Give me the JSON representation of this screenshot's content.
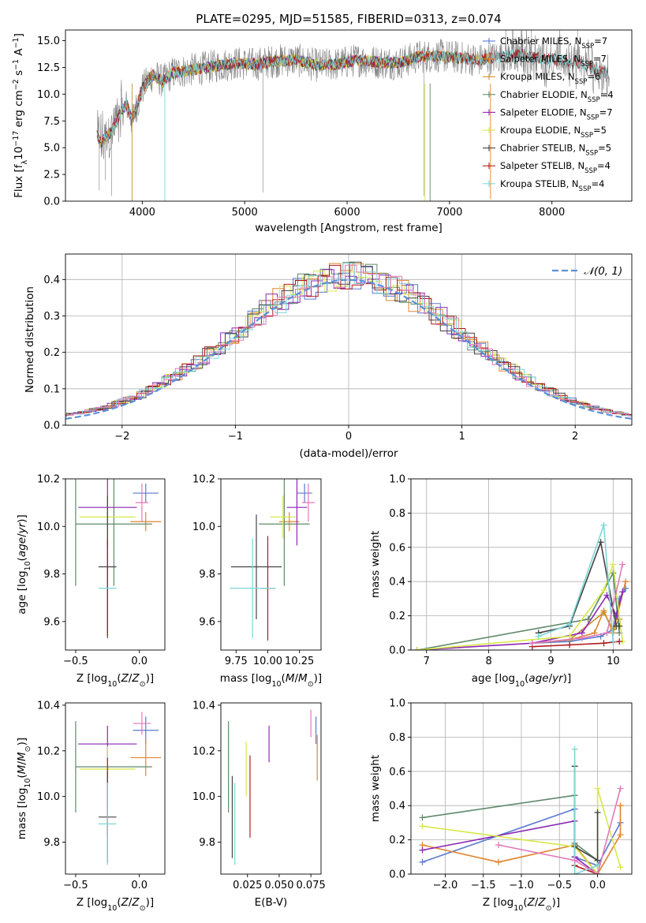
{
  "figure": {
    "title": "PLATE=0295, MJD=51585, FIBERID=0313, z=0.074"
  },
  "colors": {
    "Chabrier MILES": "#5b79d0",
    "Salpeter MILES": "#e0842e",
    "Kroupa MILES": "#c8902a",
    "Chabrier ELODIE": "#5e8a6a",
    "Salpeter ELODIE": "#8d27b3",
    "Kroupa ELODIE": "#d7e84a",
    "Chabrier STELIB": "#444444",
    "Salpeter STELIB": "#b01a1a",
    "Kroupa STELIB": "#7fd6d8",
    "data": "#808080",
    "gaussian": "#5b8fd6",
    "pink": "#e07ab8"
  },
  "chart_data": [
    {
      "id": "spectrum",
      "type": "line",
      "title": "PLATE=0295, MJD=51585, FIBERID=0313, z=0.074",
      "xlabel": "wavelength [Angstrom, rest frame]",
      "ylabel_parts": [
        "Flux [f",
        "λ",
        "10",
        "−17",
        " erg cm",
        "−2",
        " s",
        "−1",
        " A",
        "−1",
        "]"
      ],
      "xlim": [
        3250,
        8780
      ],
      "ylim": [
        0,
        16
      ],
      "xticks": [
        4000,
        5000,
        6000,
        7000,
        8000
      ],
      "yticks": [
        0.0,
        2.5,
        5.0,
        7.5,
        10.0,
        12.5,
        15.0
      ],
      "ytick_labels": [
        "0.0",
        "2.5",
        "5.0",
        "7.5",
        "10.0",
        "12.5",
        "15.0"
      ],
      "data_envelope": {
        "x": [
          3560,
          3600,
          3700,
          3800,
          3850,
          3900,
          4000,
          4100,
          4200,
          4300,
          4500,
          4700,
          4900,
          5100,
          5300,
          5500,
          5700,
          5900,
          6100,
          6300,
          6500,
          6700,
          6900,
          7100,
          7300,
          7500,
          7700,
          7900,
          8100,
          8300,
          8500
        ],
        "y": [
          6.2,
          5.5,
          6.5,
          8.5,
          9.0,
          7.5,
          10.5,
          11.8,
          11.2,
          12.0,
          12.3,
          12.6,
          12.9,
          12.8,
          13.1,
          13.2,
          12.7,
          12.8,
          13.2,
          13.0,
          12.9,
          13.5,
          13.6,
          13.4,
          13.2,
          13.5,
          13.7,
          13.3,
          13.2,
          12.8,
          12.0
        ]
      },
      "legend": [
        {
          "label": "Chabrier MILES, N",
          "sub": "SSP",
          "tail": "=7"
        },
        {
          "label": "Salpeter MILES, N",
          "sub": "SSP",
          "tail": "=7"
        },
        {
          "label": "Kroupa MILES, N",
          "sub": "SSP",
          "tail": "=6"
        },
        {
          "label": "Chabrier ELODIE, N",
          "sub": "SSP",
          "tail": "=4"
        },
        {
          "label": "Salpeter ELODIE, N",
          "sub": "SSP",
          "tail": "=7"
        },
        {
          "label": "Kroupa ELODIE, N",
          "sub": "SSP",
          "tail": "=5"
        },
        {
          "label": "Chabrier STELIB, N",
          "sub": "SSP",
          "tail": "=5"
        },
        {
          "label": "Salpeter STELIB, N",
          "sub": "SSP",
          "tail": "=4"
        },
        {
          "label": "Kroupa STELIB, N",
          "sub": "SSP",
          "tail": "=4"
        }
      ],
      "legend_position": "right"
    },
    {
      "id": "residuals",
      "type": "histogram",
      "xlabel": "(data-model)/error",
      "ylabel": "Normed distribution",
      "xlim": [
        -2.5,
        2.5
      ],
      "ylim": [
        0,
        0.47
      ],
      "xticks": [
        -2,
        -1,
        0,
        1,
        2
      ],
      "xtick_labels": [
        "−2",
        "−1",
        "0",
        "1",
        "2"
      ],
      "yticks": [
        0.0,
        0.1,
        0.2,
        0.3,
        0.4
      ],
      "ytick_labels": [
        "0.0",
        "0.1",
        "0.2",
        "0.3",
        "0.4"
      ],
      "legend": [
        {
          "label": "𝒩(0, 1)"
        }
      ],
      "legend_position": "top-right",
      "grid": true
    },
    {
      "id": "age_vs_Z",
      "type": "errorbar",
      "xlabel": "Z [log10(Z/Z⊙)]",
      "ylabel": "age  [log10(age/yr)]",
      "xlim": [
        -0.58,
        0.2
      ],
      "ylim": [
        9.48,
        10.2
      ],
      "xticks": [
        -0.5,
        0.0
      ],
      "xtick_labels": [
        "−0.5",
        "0.0"
      ],
      "yticks": [
        9.6,
        9.8,
        10.0,
        10.2
      ],
      "ytick_labels": [
        "9.6",
        "9.8",
        "10.0",
        "10.2"
      ],
      "points": [
        {
          "x": 0.05,
          "y": 10.14,
          "xerr": 0.1,
          "yerr": 0.04,
          "series": "Chabrier MILES"
        },
        {
          "x": 0.05,
          "y": 10.02,
          "xerr": 0.12,
          "yerr": 0.04,
          "series": "Salpeter MILES"
        },
        {
          "x": -0.5,
          "y": 10.01,
          "xerr": 0.0,
          "yerr": 0.26,
          "series": "Chabrier ELODIE"
        },
        {
          "x": -0.2,
          "y": 10.01,
          "xerr": 0.3,
          "yerr": 0.26,
          "series": "Chabrier ELODIE"
        },
        {
          "x": -0.25,
          "y": 10.08,
          "xerr": 0.23,
          "yerr": 0.16,
          "series": "Salpeter ELODIE"
        },
        {
          "x": -0.25,
          "y": 10.04,
          "xerr": 0.22,
          "yerr": 0.09,
          "series": "Kroupa ELODIE"
        },
        {
          "x": -0.25,
          "y": 9.83,
          "xerr": 0.07,
          "yerr": 0.3,
          "series": "Chabrier STELIB"
        },
        {
          "x": -0.25,
          "y": 9.74,
          "xerr": 0.0,
          "yerr": 0.2,
          "series": "Salpeter STELIB"
        },
        {
          "x": -0.25,
          "y": 9.74,
          "xerr": 0.07,
          "yerr": 0.0,
          "series": "Kroupa STELIB"
        },
        {
          "x": 0.02,
          "y": 10.1,
          "xerr": 0.05,
          "yerr": 0.08,
          "series": "pink"
        }
      ]
    },
    {
      "id": "age_vs_mass",
      "type": "errorbar",
      "xlabel": "mass [log10(M/M⊙)]",
      "xlim": [
        9.63,
        10.42
      ],
      "ylim": [
        9.48,
        10.2
      ],
      "xticks": [
        9.75,
        10.0,
        10.25
      ],
      "xtick_labels": [
        "9.75",
        "10.00",
        "10.25"
      ],
      "yticks": [
        9.6,
        9.8,
        10.0,
        10.2
      ],
      "ytick_labels": [
        "9.6",
        "9.8",
        "10.0",
        "10.2"
      ],
      "points": [
        {
          "x": 10.29,
          "y": 10.14,
          "xerr": 0.06,
          "yerr": 0.04,
          "series": "Chabrier MILES"
        },
        {
          "x": 10.17,
          "y": 10.02,
          "xerr": 0.08,
          "yerr": 0.04,
          "series": "Salpeter MILES"
        },
        {
          "x": 10.13,
          "y": 10.01,
          "xerr": 0.2,
          "yerr": 0.26,
          "series": "Chabrier ELODIE"
        },
        {
          "x": 10.23,
          "y": 10.08,
          "xerr": 0.08,
          "yerr": 0.16,
          "series": "Salpeter ELODIE"
        },
        {
          "x": 10.12,
          "y": 10.04,
          "xerr": 0.1,
          "yerr": 0.09,
          "series": "Kroupa ELODIE"
        },
        {
          "x": 9.91,
          "y": 9.83,
          "xerr": 0.2,
          "yerr": 0.22,
          "series": "Chabrier STELIB"
        },
        {
          "x": 10.0,
          "y": 9.74,
          "xerr": 0.06,
          "yerr": 0.22,
          "series": "Salpeter STELIB"
        },
        {
          "x": 9.88,
          "y": 9.74,
          "xerr": 0.18,
          "yerr": 0.21,
          "series": "Kroupa STELIB"
        },
        {
          "x": 10.32,
          "y": 10.1,
          "xerr": 0.05,
          "yerr": 0.08,
          "series": "pink"
        }
      ]
    },
    {
      "id": "massweight_vs_age",
      "type": "line",
      "xlabel": "age  [log10(age/yr)]",
      "ylabel": "mass weight",
      "xlim": [
        6.75,
        10.3
      ],
      "ylim": [
        0,
        1
      ],
      "xticks": [
        7,
        8,
        9,
        10
      ],
      "xtick_labels": [
        "7",
        "8",
        "9",
        "10"
      ],
      "yticks": [
        0.0,
        0.2,
        0.4,
        0.6,
        0.8,
        1.0
      ],
      "ytick_labels": [
        "0.0",
        "0.2",
        "0.4",
        "0.6",
        "0.8",
        "1.0"
      ],
      "grid": true,
      "series": [
        {
          "series": "Chabrier MILES",
          "x": [
            8.7,
            9.3,
            9.8,
            10.0,
            10.1,
            10.2
          ],
          "y": [
            0.04,
            0.05,
            0.08,
            0.12,
            0.3,
            0.36
          ]
        },
        {
          "series": "Salpeter MILES",
          "x": [
            8.7,
            9.3,
            9.7,
            9.85,
            10.0,
            10.2
          ],
          "y": [
            0.04,
            0.06,
            0.1,
            0.23,
            0.1,
            0.4
          ]
        },
        {
          "series": "Kroupa MILES",
          "x": [
            8.7,
            9.3,
            9.85,
            10.0,
            10.1
          ],
          "y": [
            0.04,
            0.06,
            0.22,
            0.12,
            0.18
          ]
        },
        {
          "series": "Chabrier ELODIE",
          "x": [
            6.85,
            9.6,
            10.0,
            10.1
          ],
          "y": [
            0.0,
            0.18,
            0.45,
            0.1
          ]
        },
        {
          "series": "Salpeter ELODIE",
          "x": [
            6.85,
            8.7,
            9.5,
            9.9,
            10.05,
            10.15
          ],
          "y": [
            0.0,
            0.04,
            0.1,
            0.32,
            0.2,
            0.34
          ]
        },
        {
          "series": "Kroupa ELODIE",
          "x": [
            6.85,
            9.3,
            9.85,
            10.0,
            10.15
          ],
          "y": [
            0.0,
            0.08,
            0.35,
            0.5,
            0.05
          ]
        },
        {
          "series": "Chabrier STELIB",
          "x": [
            8.8,
            9.3,
            9.8,
            10.05,
            10.1
          ],
          "y": [
            0.1,
            0.14,
            0.63,
            0.14,
            0.14
          ]
        },
        {
          "series": "Salpeter STELIB",
          "x": [
            8.7,
            9.3,
            9.85,
            10.1
          ],
          "y": [
            0.02,
            0.03,
            0.04,
            0.05
          ]
        },
        {
          "series": "Kroupa STELIB",
          "x": [
            8.8,
            9.3,
            9.85,
            10.0
          ],
          "y": [
            0.08,
            0.15,
            0.73,
            0.05
          ]
        },
        {
          "series": "pink",
          "x": [
            8.7,
            9.5,
            9.9,
            10.15
          ],
          "y": [
            0.04,
            0.07,
            0.1,
            0.5
          ]
        }
      ]
    },
    {
      "id": "mass_vs_Z",
      "type": "errorbar",
      "xlabel": "Z [log10(Z/Z⊙)]",
      "ylabel": "mass [log10(M/M⊙)]",
      "xlim": [
        -0.58,
        0.2
      ],
      "ylim": [
        9.66,
        10.41
      ],
      "xticks": [
        -0.5,
        0.0
      ],
      "xtick_labels": [
        "−0.5",
        "0.0"
      ],
      "yticks": [
        9.8,
        10.0,
        10.2,
        10.4
      ],
      "ytick_labels": [
        "9.8",
        "10.0",
        "10.2",
        "10.4"
      ],
      "points": [
        {
          "x": 0.05,
          "y": 10.29,
          "xerr": 0.1,
          "yerr": 0.06,
          "series": "Chabrier MILES"
        },
        {
          "x": 0.05,
          "y": 10.17,
          "xerr": 0.12,
          "yerr": 0.08,
          "series": "Salpeter MILES"
        },
        {
          "x": -0.5,
          "y": 10.13,
          "xerr": 0.0,
          "yerr": 0.2,
          "series": "Chabrier ELODIE"
        },
        {
          "x": -0.2,
          "y": 10.13,
          "xerr": 0.3,
          "yerr": 0.0,
          "series": "Chabrier ELODIE"
        },
        {
          "x": -0.25,
          "y": 10.23,
          "xerr": 0.23,
          "yerr": 0.08,
          "series": "Salpeter ELODIE"
        },
        {
          "x": -0.25,
          "y": 10.12,
          "xerr": 0.22,
          "yerr": 0.1,
          "series": "Kroupa ELODIE"
        },
        {
          "x": -0.25,
          "y": 9.91,
          "xerr": 0.07,
          "yerr": 0.2,
          "series": "Chabrier STELIB"
        },
        {
          "x": -0.25,
          "y": 10.0,
          "xerr": 0.0,
          "yerr": 0.17,
          "series": "Salpeter STELIB"
        },
        {
          "x": -0.25,
          "y": 9.88,
          "xerr": 0.07,
          "yerr": 0.18,
          "series": "Kroupa STELIB"
        },
        {
          "x": 0.02,
          "y": 10.32,
          "xerr": 0.07,
          "yerr": 0.05,
          "series": "pink"
        }
      ]
    },
    {
      "id": "mass_vs_EBV",
      "type": "errorbar",
      "xlabel": "E(B-V)",
      "xlim": [
        0.004,
        0.083
      ],
      "ylim": [
        9.66,
        10.41
      ],
      "xticks": [
        0.025,
        0.05,
        0.075
      ],
      "xtick_labels": [
        "0.025",
        "0.050",
        "0.075"
      ],
      "yticks": [
        9.8,
        10.0,
        10.2,
        10.4
      ],
      "ytick_labels": [
        "9.8",
        "10.0",
        "10.2",
        "10.4"
      ],
      "points": [
        {
          "x": 0.079,
          "y": 10.29,
          "xerr": 0.0,
          "yerr": 0.06,
          "series": "Chabrier MILES"
        },
        {
          "x": 0.08,
          "y": 10.17,
          "xerr": 0.0,
          "yerr": 0.1,
          "series": "Salpeter MILES"
        },
        {
          "x": 0.01,
          "y": 10.13,
          "xerr": 0.0,
          "yerr": 0.2,
          "series": "Chabrier ELODIE"
        },
        {
          "x": 0.042,
          "y": 10.23,
          "xerr": 0.0,
          "yerr": 0.08,
          "series": "Salpeter ELODIE"
        },
        {
          "x": 0.024,
          "y": 10.12,
          "xerr": 0.0,
          "yerr": 0.12,
          "series": "Kroupa ELODIE"
        },
        {
          "x": 0.013,
          "y": 9.91,
          "xerr": 0.0,
          "yerr": 0.18,
          "series": "Chabrier STELIB"
        },
        {
          "x": 0.027,
          "y": 10.0,
          "xerr": 0.0,
          "yerr": 0.18,
          "series": "Salpeter STELIB"
        },
        {
          "x": 0.015,
          "y": 9.88,
          "xerr": 0.0,
          "yerr": 0.18,
          "series": "Kroupa STELIB"
        },
        {
          "x": 0.075,
          "y": 10.32,
          "xerr": 0.0,
          "yerr": 0.06,
          "series": "pink"
        }
      ]
    },
    {
      "id": "massweight_vs_Z",
      "type": "line",
      "xlabel": "Z [log10(Z/Z⊙)]",
      "ylabel": "mass weight",
      "xlim": [
        -2.45,
        0.45
      ],
      "ylim": [
        0,
        1
      ],
      "xticks": [
        -2.0,
        -1.5,
        -1.0,
        -0.5,
        0.0
      ],
      "xtick_labels": [
        "−2.0",
        "−1.5",
        "−1.0",
        "−0.5",
        "0.0"
      ],
      "yticks": [
        0.0,
        0.2,
        0.4,
        0.6,
        0.8,
        1.0
      ],
      "ytick_labels": [
        "0.0",
        "0.2",
        "0.4",
        "0.6",
        "0.8",
        "1.0"
      ],
      "grid": true,
      "series": [
        {
          "series": "Chabrier MILES",
          "x": [
            -2.3,
            -0.3,
            -0.3,
            0.0,
            0.3
          ],
          "y": [
            0.07,
            0.38,
            0.1,
            0.05,
            0.3
          ]
        },
        {
          "series": "Salpeter MILES",
          "x": [
            -2.3,
            -1.3,
            -0.3,
            0.0,
            0.3,
            0.3
          ],
          "y": [
            0.17,
            0.07,
            0.17,
            0.0,
            0.23,
            0.4
          ]
        },
        {
          "series": "Chabrier ELODIE",
          "x": [
            -2.3,
            -0.3,
            -0.3,
            0.0
          ],
          "y": [
            0.33,
            0.46,
            0.18,
            0.08
          ]
        },
        {
          "series": "Salpeter ELODIE",
          "x": [
            -2.3,
            -0.3,
            -0.3,
            0.0
          ],
          "y": [
            0.14,
            0.31,
            0.1,
            0.0
          ]
        },
        {
          "series": "Kroupa ELODIE",
          "x": [
            -2.3,
            -0.3,
            0.0,
            0.0,
            0.3
          ],
          "y": [
            0.28,
            0.16,
            0.0,
            0.5,
            0.04
          ]
        },
        {
          "series": "Chabrier STELIB",
          "x": [
            -0.3,
            -0.3,
            0.0,
            0.0
          ],
          "y": [
            0.63,
            0.16,
            0.08,
            0.36
          ]
        },
        {
          "series": "Salpeter STELIB",
          "x": [
            -0.3,
            0.0
          ],
          "y": [
            0.05,
            0.0
          ]
        },
        {
          "series": "Kroupa STELIB",
          "x": [
            -0.3,
            -0.3,
            0.0
          ],
          "y": [
            0.73,
            0.0,
            0.05
          ]
        },
        {
          "series": "pink",
          "x": [
            -1.3,
            -0.3,
            0.0,
            0.3
          ],
          "y": [
            0.17,
            0.08,
            0.0,
            0.5
          ]
        }
      ]
    }
  ]
}
